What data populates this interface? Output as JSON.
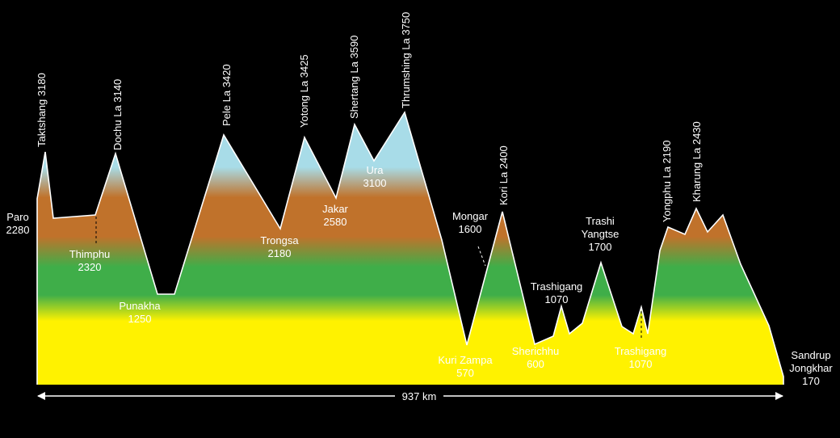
{
  "colors": {
    "background": "#000000",
    "outline": "#ffffff",
    "band_lowland": "#fff200",
    "band_forest": "#3fae49",
    "band_highland": "#c0722b",
    "band_alpine": "#a8dce8"
  },
  "distance": {
    "label": "937 km"
  },
  "places": [
    {
      "id": "paro",
      "lines": [
        "Paro",
        "2280"
      ]
    },
    {
      "id": "taktshang",
      "lines": [
        "Taktshang 3180"
      ]
    },
    {
      "id": "thimphu",
      "lines": [
        "Thimphu",
        "2320"
      ]
    },
    {
      "id": "dochu-la",
      "lines": [
        "Dochu La 3140"
      ]
    },
    {
      "id": "punakha",
      "lines": [
        "Punakha",
        "1250"
      ]
    },
    {
      "id": "pele-la",
      "lines": [
        "Pele La 3420"
      ]
    },
    {
      "id": "trongsa",
      "lines": [
        "Trongsa",
        "2180"
      ]
    },
    {
      "id": "yotong-la",
      "lines": [
        "Yotong La 3425"
      ]
    },
    {
      "id": "jakar",
      "lines": [
        "Jakar",
        "2580"
      ]
    },
    {
      "id": "shertang-la",
      "lines": [
        "Shertang La 3590"
      ]
    },
    {
      "id": "ura",
      "lines": [
        "Ura",
        "3100"
      ]
    },
    {
      "id": "thrumshing-la",
      "lines": [
        "Thrumshing La 3750"
      ]
    },
    {
      "id": "mongar",
      "lines": [
        "Mongar",
        "1600"
      ]
    },
    {
      "id": "kuri-zampa",
      "lines": [
        "Kuri Zampa",
        "570"
      ]
    },
    {
      "id": "kori-la",
      "lines": [
        "Kori La 2400"
      ]
    },
    {
      "id": "sherichhu",
      "lines": [
        "Sherichhu",
        "600"
      ]
    },
    {
      "id": "trashigang-upper",
      "lines": [
        "Trashigang",
        "1070"
      ]
    },
    {
      "id": "trashi-yangtse",
      "lines": [
        "Trashi",
        "Yangtse",
        "1700"
      ]
    },
    {
      "id": "trashigang-lower",
      "lines": [
        "Trashigang",
        "1070"
      ]
    },
    {
      "id": "yongphu-la",
      "lines": [
        "Yongphu La 2190"
      ]
    },
    {
      "id": "kharung-la",
      "lines": [
        "Kharung La 2430"
      ]
    },
    {
      "id": "samdrup-jongkhar",
      "lines": [
        "Sandrup",
        "Jongkhar",
        "170"
      ]
    }
  ]
}
